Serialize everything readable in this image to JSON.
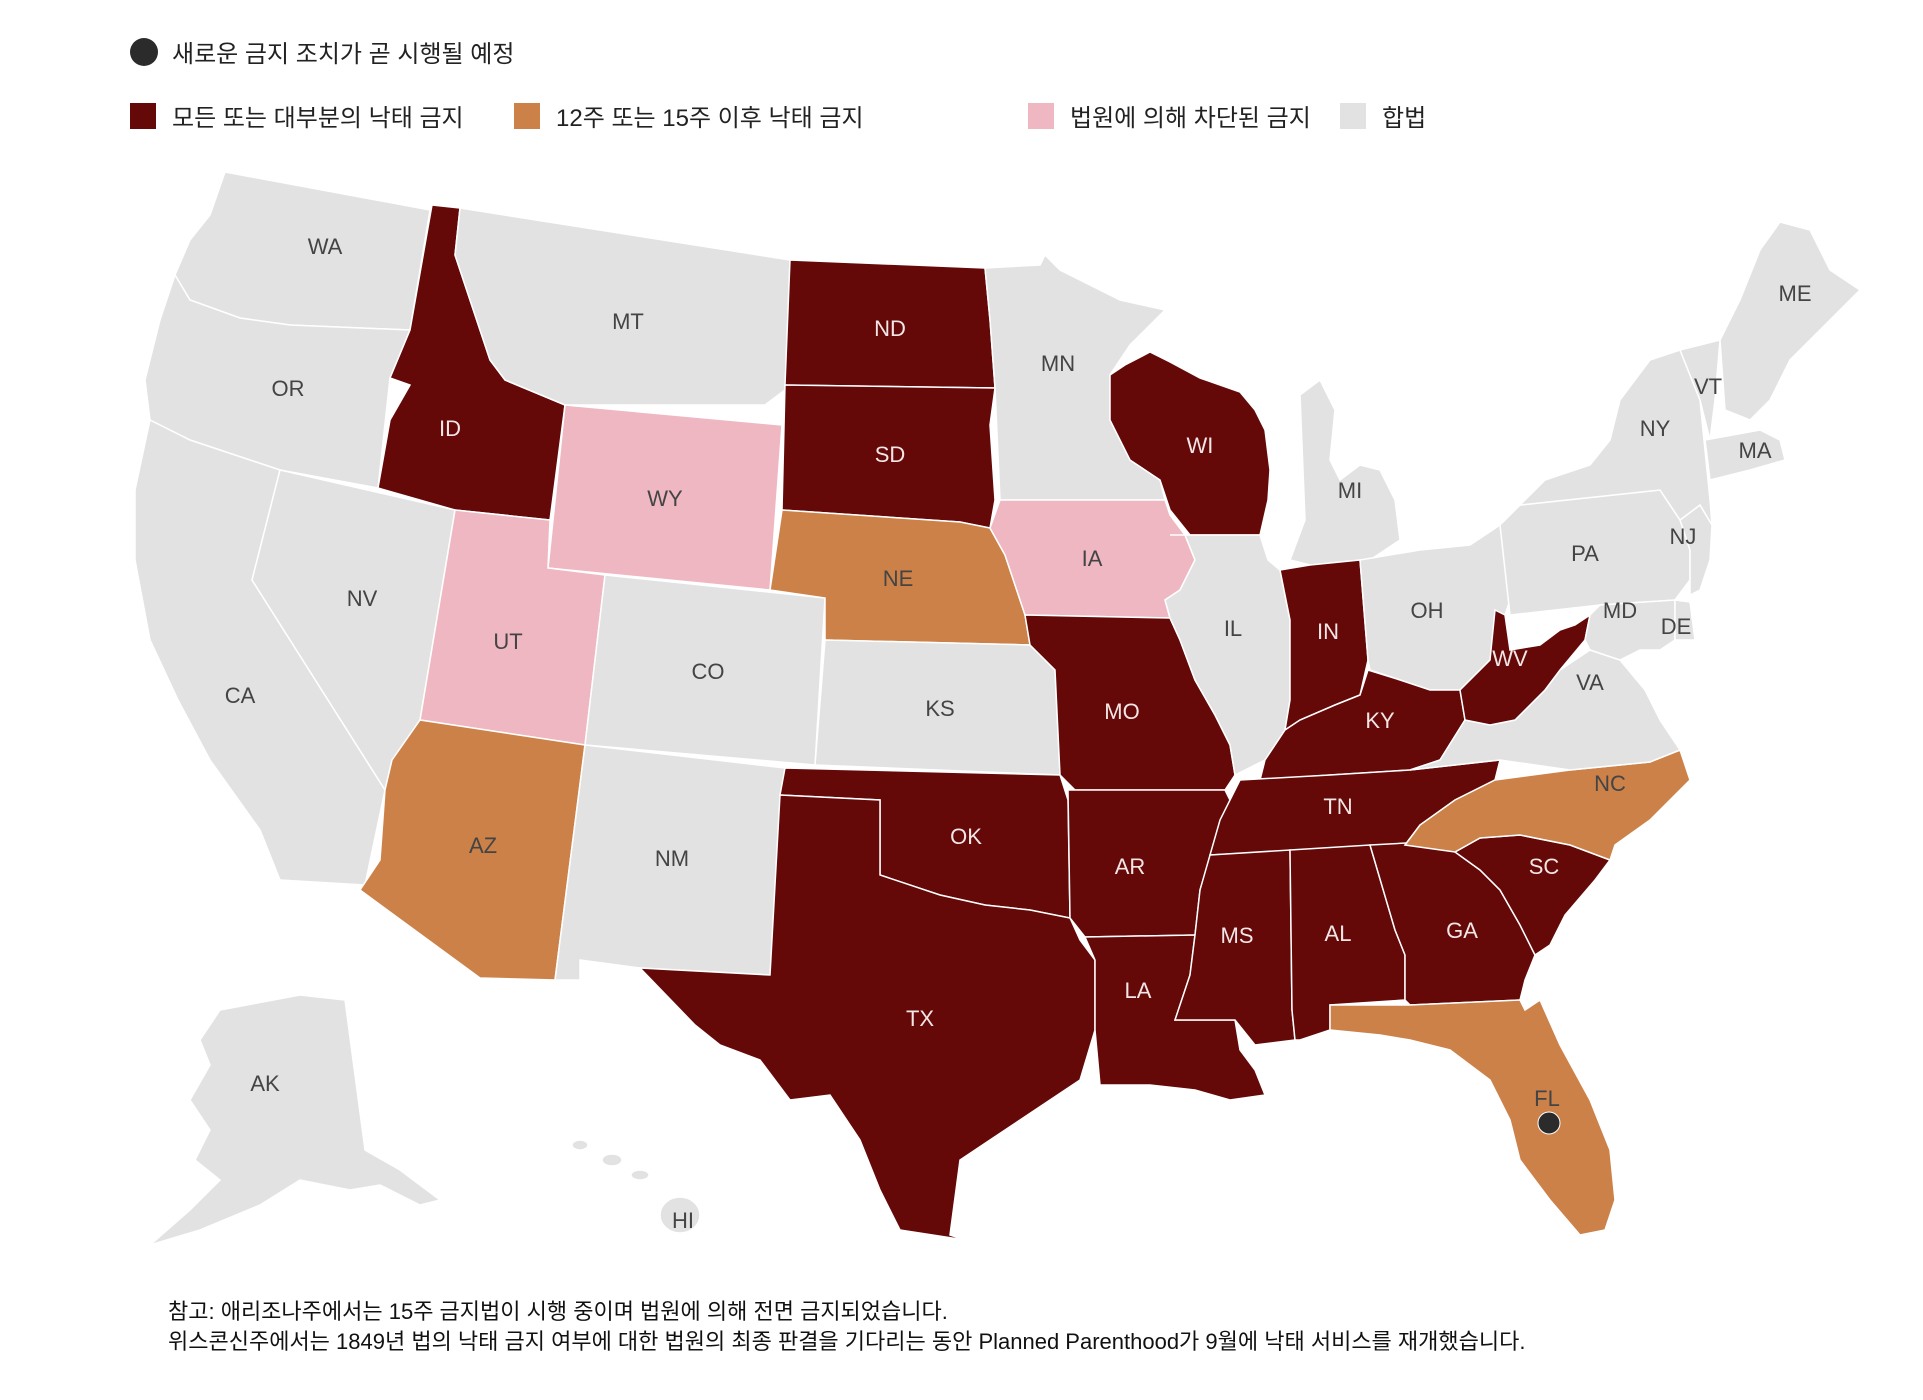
{
  "legend": {
    "marker_label": "새로운 금지 조치가 곧 시행될 예정",
    "items": [
      {
        "key": "ban",
        "label": "모든 또는 대부분의 낙태 금지",
        "color": "#640808"
      },
      {
        "key": "limit",
        "label": "12주 또는 15주 이후 낙태 금지",
        "color": "#cc8148"
      },
      {
        "key": "blocked",
        "label": "법원에 의해 차단된 금지",
        "color": "#efb7c1"
      },
      {
        "key": "legal",
        "label": "합법",
        "color": "#e2e2e2"
      }
    ]
  },
  "states": [
    {
      "code": "WA",
      "status": "legal"
    },
    {
      "code": "OR",
      "status": "legal"
    },
    {
      "code": "CA",
      "status": "legal"
    },
    {
      "code": "NV",
      "status": "legal"
    },
    {
      "code": "ID",
      "status": "ban"
    },
    {
      "code": "MT",
      "status": "legal"
    },
    {
      "code": "WY",
      "status": "blocked"
    },
    {
      "code": "UT",
      "status": "blocked"
    },
    {
      "code": "AZ",
      "status": "limit"
    },
    {
      "code": "CO",
      "status": "legal"
    },
    {
      "code": "NM",
      "status": "legal"
    },
    {
      "code": "ND",
      "status": "ban"
    },
    {
      "code": "SD",
      "status": "ban"
    },
    {
      "code": "NE",
      "status": "limit"
    },
    {
      "code": "KS",
      "status": "legal"
    },
    {
      "code": "OK",
      "status": "ban"
    },
    {
      "code": "TX",
      "status": "ban"
    },
    {
      "code": "MN",
      "status": "legal"
    },
    {
      "code": "IA",
      "status": "blocked"
    },
    {
      "code": "MO",
      "status": "ban"
    },
    {
      "code": "AR",
      "status": "ban"
    },
    {
      "code": "LA",
      "status": "ban"
    },
    {
      "code": "WI",
      "status": "ban"
    },
    {
      "code": "IL",
      "status": "legal"
    },
    {
      "code": "MI",
      "status": "legal"
    },
    {
      "code": "IN",
      "status": "ban"
    },
    {
      "code": "OH",
      "status": "legal"
    },
    {
      "code": "KY",
      "status": "ban"
    },
    {
      "code": "TN",
      "status": "ban"
    },
    {
      "code": "MS",
      "status": "ban"
    },
    {
      "code": "AL",
      "status": "ban"
    },
    {
      "code": "GA",
      "status": "ban"
    },
    {
      "code": "FL",
      "status": "limit"
    },
    {
      "code": "SC",
      "status": "ban"
    },
    {
      "code": "NC",
      "status": "limit"
    },
    {
      "code": "VA",
      "status": "legal"
    },
    {
      "code": "WV",
      "status": "ban"
    },
    {
      "code": "MD",
      "status": "legal"
    },
    {
      "code": "DE",
      "status": "legal"
    },
    {
      "code": "PA",
      "status": "legal"
    },
    {
      "code": "NJ",
      "status": "legal"
    },
    {
      "code": "NY",
      "status": "legal"
    },
    {
      "code": "VT",
      "status": "legal"
    },
    {
      "code": "MA",
      "status": "legal"
    },
    {
      "code": "ME",
      "status": "legal"
    },
    {
      "code": "AK",
      "status": "legal"
    },
    {
      "code": "HI",
      "status": "legal"
    }
  ],
  "upcoming_ban_states": [
    "FL"
  ],
  "notes": {
    "line1": "참고: 애리조나주에서는 15주 금지법이 시행 중이며 법원에 의해 전면 금지되었습니다.",
    "line2": "위스콘신주에서는 1849년 법의 낙태 금지 여부에 대한 법원의 최종 판결을 기다리는 동안 Planned Parenthood가 9월에 낙태 서비스를 재개했습니다."
  }
}
